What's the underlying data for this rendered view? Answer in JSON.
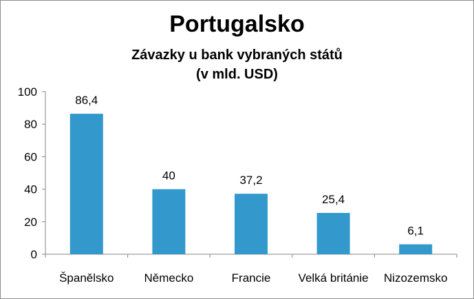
{
  "chart_data": {
    "type": "bar",
    "title": "Portugalsko",
    "subtitle": "Závazky u bank vybraných států\n(v mld. USD)",
    "categories": [
      "Španělsko",
      "Německo",
      "Francie",
      "Velká británie",
      "Nizozemsko"
    ],
    "values": [
      86.4,
      40,
      37.2,
      25.4,
      6.1
    ],
    "value_labels": [
      "86,4",
      "40",
      "37,2",
      "25,4",
      "6,1"
    ],
    "yticks": [
      0,
      20,
      40,
      60,
      80,
      100
    ],
    "ylim": [
      0,
      100
    ],
    "xlabel": "",
    "ylabel": "",
    "grid": false,
    "bar_color": "#3399cc"
  }
}
